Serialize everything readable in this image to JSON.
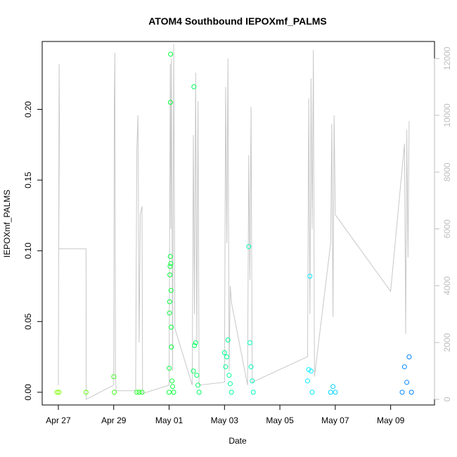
{
  "chart_data": {
    "type": "scatter",
    "title": "ATOM4 Southbound IEPOXmf_PALMS",
    "xlabel": "Date",
    "ylabel": "IEPOXmf_PALMS",
    "x_axis": {
      "type": "date",
      "xlim": [
        "2016-04-26T10:00",
        "2016-05-10T14:00"
      ],
      "ticks": [
        {
          "date": "2016-04-27",
          "label": "Apr 27"
        },
        {
          "date": "2016-04-29",
          "label": "Apr 29"
        },
        {
          "date": "2016-05-01",
          "label": "May 01"
        },
        {
          "date": "2016-05-03",
          "label": "May 03"
        },
        {
          "date": "2016-05-05",
          "label": "May 05"
        },
        {
          "date": "2016-05-07",
          "label": "May 07"
        },
        {
          "date": "2016-05-09",
          "label": "May 09"
        }
      ]
    },
    "y_axis_left": {
      "ylim": [
        -0.009,
        0.248
      ],
      "ticks": [
        0.0,
        0.05,
        0.1,
        0.15,
        0.2
      ],
      "tick_labels": [
        "0.00",
        "0.05",
        "0.10",
        "0.15",
        "0.20"
      ]
    },
    "y_axis_right": {
      "ylim": [
        -200,
        12600
      ],
      "ticks": [
        0,
        2000,
        4000,
        6000,
        8000,
        10000,
        12000
      ],
      "tick_labels": [
        "0",
        "2000",
        "4000",
        "6000",
        "8000",
        "10000",
        "12000"
      ],
      "color": "#bebebe"
    },
    "grid": false,
    "background_series": {
      "axis": "right",
      "color": "#c8c8c8",
      "points": [
        [
          "2016-04-27T00:00",
          500
        ],
        [
          "2016-04-27T00:40",
          11800
        ],
        [
          "2016-04-27T01:00",
          9800
        ],
        [
          "2016-04-27T00:20",
          5300
        ],
        [
          "2016-04-28T00:00",
          5300
        ],
        [
          "2016-04-28T00:10",
          0
        ],
        [
          "2016-04-29T00:00",
          500
        ],
        [
          "2016-04-29T00:30",
          10500
        ],
        [
          "2016-04-29T01:00",
          12200
        ],
        [
          "2016-04-29T01:30",
          1000
        ],
        [
          "2016-04-29T02:00",
          300
        ],
        [
          "2016-04-29T19:00",
          300
        ],
        [
          "2016-04-29T20:00",
          8800
        ],
        [
          "2016-04-29T21:00",
          10000
        ],
        [
          "2016-04-29T22:00",
          2000
        ],
        [
          "2016-04-29T23:00",
          6500
        ],
        [
          "2016-04-30T00:30",
          6800
        ],
        [
          "2016-04-30T01:00",
          200
        ],
        [
          "2016-05-01T00:00",
          500
        ],
        [
          "2016-05-01T01:00",
          11800
        ],
        [
          "2016-05-01T01:30",
          6000
        ],
        [
          "2016-05-01T02:00",
          12000
        ],
        [
          "2016-05-01T03:00",
          1000
        ],
        [
          "2016-05-01T04:00",
          12500
        ],
        [
          "2016-05-01T05:00",
          2500
        ],
        [
          "2016-05-01T20:00",
          500
        ],
        [
          "2016-05-01T21:00",
          9300
        ],
        [
          "2016-05-01T22:00",
          3000
        ],
        [
          "2016-05-01T23:00",
          11500
        ],
        [
          "2016-05-02T00:00",
          2000
        ],
        [
          "2016-05-02T01:00",
          10500
        ],
        [
          "2016-05-02T02:00",
          500
        ],
        [
          "2016-05-03T00:00",
          600
        ],
        [
          "2016-05-03T01:00",
          11000
        ],
        [
          "2016-05-03T02:00",
          5500
        ],
        [
          "2016-05-03T03:00",
          12000
        ],
        [
          "2016-05-03T04:00",
          1000
        ],
        [
          "2016-05-03T05:00",
          4000
        ],
        [
          "2016-05-03T06:00",
          3400
        ],
        [
          "2016-05-03T20:00",
          500
        ],
        [
          "2016-05-03T21:00",
          8600
        ],
        [
          "2016-05-03T22:00",
          4200
        ],
        [
          "2016-05-03T23:00",
          10300
        ],
        [
          "2016-05-04T00:00",
          600
        ],
        [
          "2016-05-06T00:00",
          1500
        ],
        [
          "2016-05-06T01:00",
          10600
        ],
        [
          "2016-05-06T02:00",
          3000
        ],
        [
          "2016-05-06T03:00",
          11300
        ],
        [
          "2016-05-06T04:00",
          6000
        ],
        [
          "2016-05-06T05:00",
          12300
        ],
        [
          "2016-05-06T06:00",
          800
        ],
        [
          "2016-05-06T20:00",
          5500
        ],
        [
          "2016-05-06T21:00",
          9700
        ],
        [
          "2016-05-06T22:00",
          2900
        ],
        [
          "2016-05-06T23:00",
          10000
        ],
        [
          "2016-05-07T00:00",
          6500
        ],
        [
          "2016-05-09T00:00",
          3800
        ],
        [
          "2016-05-09T12:00",
          9000
        ],
        [
          "2016-05-09T13:00",
          2300
        ],
        [
          "2016-05-09T14:00",
          9500
        ],
        [
          "2016-05-09T15:00",
          5000
        ],
        [
          "2016-05-09T16:00",
          9800
        ]
      ]
    },
    "series": [
      {
        "axis": "left",
        "marker": "open-circle",
        "color_gradient": [
          "#7fff00",
          "#00ff40",
          "#00ffff",
          "#0080ff"
        ],
        "points": [
          [
            "2016-04-26T23:00",
            0.0
          ],
          [
            "2016-04-27T00:30",
            0.0
          ],
          [
            "2016-04-28T00:00",
            0.0
          ],
          [
            "2016-04-29T00:00",
            0.011
          ],
          [
            "2016-04-29T00:30",
            0.0
          ],
          [
            "2016-04-29T20:00",
            0.0
          ],
          [
            "2016-04-29T22:00",
            0.0
          ],
          [
            "2016-04-30T00:30",
            0.0
          ],
          [
            "2016-05-01T00:00",
            0.0
          ],
          [
            "2016-05-01T00:10",
            0.017
          ],
          [
            "2016-05-01T00:20",
            0.056
          ],
          [
            "2016-05-01T00:30",
            0.064
          ],
          [
            "2016-05-01T00:40",
            0.083
          ],
          [
            "2016-05-01T00:50",
            0.089
          ],
          [
            "2016-05-01T01:00",
            0.096
          ],
          [
            "2016-05-01T01:10",
            0.205
          ],
          [
            "2016-05-01T01:20",
            0.239
          ],
          [
            "2016-05-01T01:30",
            0.091
          ],
          [
            "2016-05-01T01:40",
            0.072
          ],
          [
            "2016-05-01T01:50",
            0.046
          ],
          [
            "2016-05-01T02:00",
            0.032
          ],
          [
            "2016-05-01T02:30",
            0.008
          ],
          [
            "2016-05-01T03:00",
            0.004
          ],
          [
            "2016-05-01T04:00",
            0.0
          ],
          [
            "2016-05-01T21:00",
            0.015
          ],
          [
            "2016-05-01T21:30",
            0.216
          ],
          [
            "2016-05-01T22:00",
            0.033
          ],
          [
            "2016-05-01T23:00",
            0.035
          ],
          [
            "2016-05-02T00:00",
            0.012
          ],
          [
            "2016-05-02T01:00",
            0.005
          ],
          [
            "2016-05-02T02:00",
            0.0
          ],
          [
            "2016-05-03T00:00",
            0.028
          ],
          [
            "2016-05-03T01:00",
            0.018
          ],
          [
            "2016-05-03T02:00",
            0.025
          ],
          [
            "2016-05-03T03:00",
            0.037
          ],
          [
            "2016-05-03T04:00",
            0.012
          ],
          [
            "2016-05-03T05:00",
            0.006
          ],
          [
            "2016-05-03T06:00",
            0.0
          ],
          [
            "2016-05-03T21:00",
            0.103
          ],
          [
            "2016-05-03T22:00",
            0.035
          ],
          [
            "2016-05-03T23:00",
            0.018
          ],
          [
            "2016-05-04T00:00",
            0.008
          ],
          [
            "2016-05-04T01:00",
            0.0
          ],
          [
            "2016-05-06T00:00",
            0.008
          ],
          [
            "2016-05-06T01:00",
            0.016
          ],
          [
            "2016-05-06T02:00",
            0.082
          ],
          [
            "2016-05-06T03:00",
            0.015
          ],
          [
            "2016-05-06T04:00",
            0.0
          ],
          [
            "2016-05-06T20:00",
            0.0
          ],
          [
            "2016-05-06T22:00",
            0.004
          ],
          [
            "2016-05-07T00:00",
            0.0
          ],
          [
            "2016-05-09T10:00",
            0.0
          ],
          [
            "2016-05-09T12:00",
            0.018
          ],
          [
            "2016-05-09T14:00",
            0.007
          ],
          [
            "2016-05-09T16:00",
            0.025
          ],
          [
            "2016-05-09T18:00",
            0.0
          ]
        ]
      }
    ]
  }
}
